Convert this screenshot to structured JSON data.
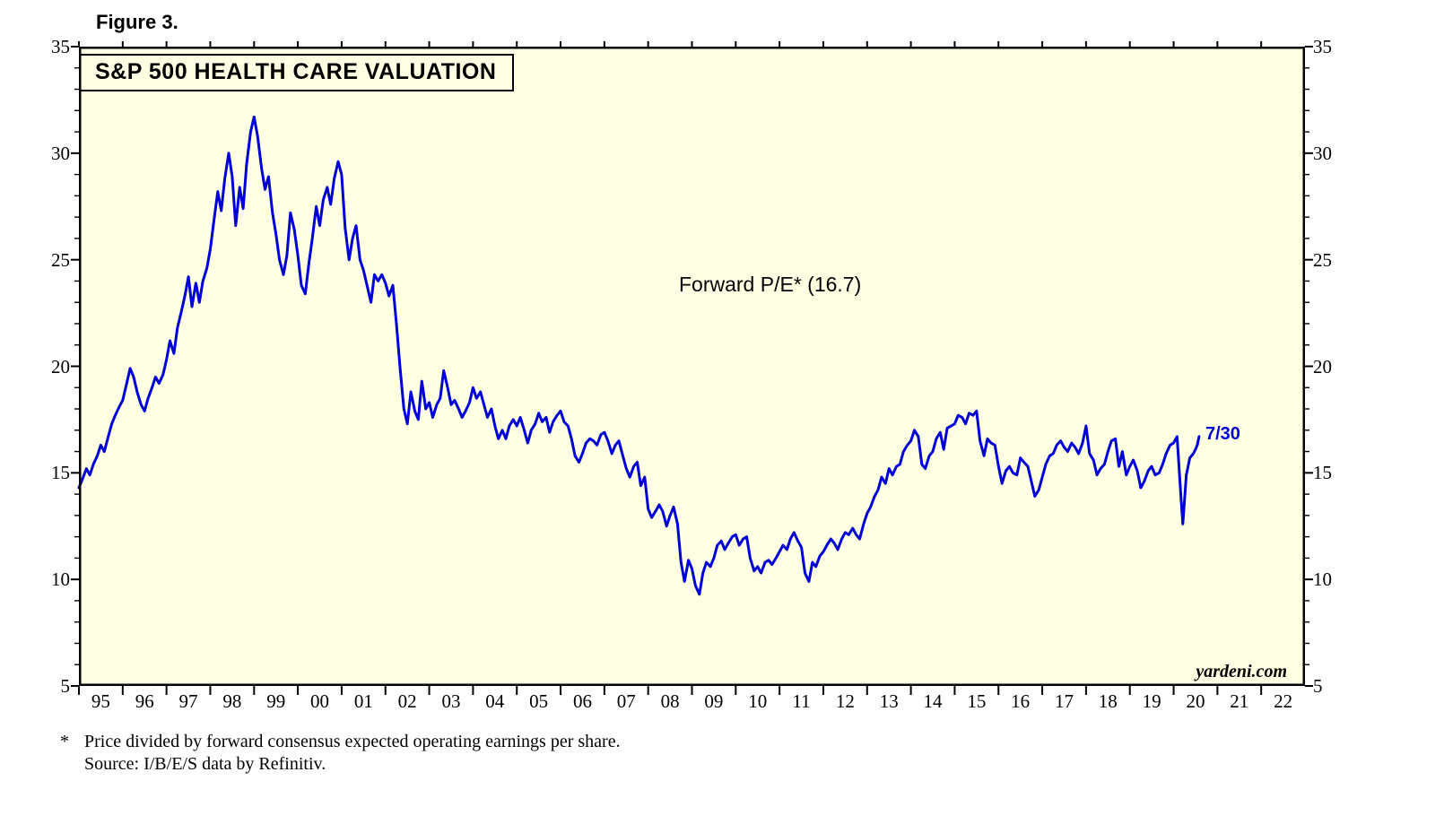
{
  "figure_label": "Figure 3.",
  "chart": {
    "title": "S&P 500 HEALTH CARE VALUATION",
    "annotation": "Forward P/E* (16.7)",
    "last_point_label": "7/30",
    "watermark": "yardeni.com",
    "colors": {
      "line": "#0000D6",
      "plot_bg": "#FFFFE3",
      "axis": "#000000"
    }
  },
  "footnote": {
    "marker": "*",
    "line1": "Price divided by forward consensus expected operating earnings per share.",
    "line2": "Source: I/B/E/S data by Refinitiv."
  },
  "chart_data": {
    "type": "line",
    "title": "S&P 500 HEALTH CARE VALUATION",
    "series_name": "Forward P/E",
    "last_value": 16.7,
    "last_date_label": "7/30",
    "x_range": [
      1995,
      2023
    ],
    "y_range": [
      5,
      35
    ],
    "y_ticks": [
      5,
      10,
      15,
      20,
      25,
      30,
      35
    ],
    "x_tick_labels": [
      "95",
      "96",
      "97",
      "98",
      "99",
      "00",
      "01",
      "02",
      "03",
      "04",
      "05",
      "06",
      "07",
      "08",
      "09",
      "10",
      "11",
      "12",
      "13",
      "14",
      "15",
      "16",
      "17",
      "18",
      "19",
      "20",
      "21",
      "22"
    ],
    "grid": false,
    "legend": "none",
    "points": [
      [
        1995.0,
        14.3
      ],
      [
        1995.08,
        14.7
      ],
      [
        1995.17,
        15.2
      ],
      [
        1995.25,
        14.9
      ],
      [
        1995.33,
        15.4
      ],
      [
        1995.42,
        15.8
      ],
      [
        1995.5,
        16.3
      ],
      [
        1995.58,
        16.0
      ],
      [
        1995.67,
        16.7
      ],
      [
        1995.75,
        17.3
      ],
      [
        1995.83,
        17.7
      ],
      [
        1995.92,
        18.1
      ],
      [
        1996.0,
        18.4
      ],
      [
        1996.08,
        19.1
      ],
      [
        1996.17,
        19.9
      ],
      [
        1996.25,
        19.5
      ],
      [
        1996.33,
        18.8
      ],
      [
        1996.42,
        18.2
      ],
      [
        1996.5,
        17.9
      ],
      [
        1996.58,
        18.5
      ],
      [
        1996.67,
        19.0
      ],
      [
        1996.75,
        19.5
      ],
      [
        1996.83,
        19.2
      ],
      [
        1996.92,
        19.6
      ],
      [
        1997.0,
        20.3
      ],
      [
        1997.08,
        21.2
      ],
      [
        1997.17,
        20.6
      ],
      [
        1997.25,
        21.8
      ],
      [
        1997.33,
        22.5
      ],
      [
        1997.42,
        23.3
      ],
      [
        1997.5,
        24.2
      ],
      [
        1997.58,
        22.8
      ],
      [
        1997.67,
        23.9
      ],
      [
        1997.75,
        23.0
      ],
      [
        1997.83,
        24.0
      ],
      [
        1997.92,
        24.6
      ],
      [
        1998.0,
        25.5
      ],
      [
        1998.08,
        26.8
      ],
      [
        1998.17,
        28.2
      ],
      [
        1998.25,
        27.3
      ],
      [
        1998.33,
        28.8
      ],
      [
        1998.42,
        30.0
      ],
      [
        1998.5,
        28.9
      ],
      [
        1998.58,
        26.6
      ],
      [
        1998.67,
        28.4
      ],
      [
        1998.75,
        27.4
      ],
      [
        1998.83,
        29.5
      ],
      [
        1998.92,
        31.0
      ],
      [
        1999.0,
        31.7
      ],
      [
        1999.08,
        30.8
      ],
      [
        1999.17,
        29.3
      ],
      [
        1999.25,
        28.3
      ],
      [
        1999.33,
        28.9
      ],
      [
        1999.42,
        27.2
      ],
      [
        1999.5,
        26.2
      ],
      [
        1999.58,
        25.0
      ],
      [
        1999.67,
        24.3
      ],
      [
        1999.75,
        25.2
      ],
      [
        1999.83,
        27.2
      ],
      [
        1999.92,
        26.4
      ],
      [
        2000.0,
        25.2
      ],
      [
        2000.08,
        23.8
      ],
      [
        2000.17,
        23.4
      ],
      [
        2000.25,
        24.8
      ],
      [
        2000.33,
        26.0
      ],
      [
        2000.42,
        27.5
      ],
      [
        2000.5,
        26.6
      ],
      [
        2000.58,
        27.8
      ],
      [
        2000.67,
        28.4
      ],
      [
        2000.75,
        27.6
      ],
      [
        2000.83,
        28.8
      ],
      [
        2000.92,
        29.6
      ],
      [
        2001.0,
        29.0
      ],
      [
        2001.08,
        26.5
      ],
      [
        2001.17,
        25.0
      ],
      [
        2001.25,
        26.0
      ],
      [
        2001.33,
        26.6
      ],
      [
        2001.42,
        25.0
      ],
      [
        2001.5,
        24.5
      ],
      [
        2001.58,
        23.8
      ],
      [
        2001.67,
        23.0
      ],
      [
        2001.75,
        24.3
      ],
      [
        2001.83,
        24.0
      ],
      [
        2001.92,
        24.3
      ],
      [
        2002.0,
        23.9
      ],
      [
        2002.08,
        23.3
      ],
      [
        2002.17,
        23.8
      ],
      [
        2002.25,
        22.0
      ],
      [
        2002.33,
        20.0
      ],
      [
        2002.42,
        18.0
      ],
      [
        2002.5,
        17.3
      ],
      [
        2002.58,
        18.8
      ],
      [
        2002.67,
        17.9
      ],
      [
        2002.75,
        17.5
      ],
      [
        2002.83,
        19.3
      ],
      [
        2002.92,
        18.0
      ],
      [
        2003.0,
        18.3
      ],
      [
        2003.08,
        17.6
      ],
      [
        2003.17,
        18.2
      ],
      [
        2003.25,
        18.5
      ],
      [
        2003.33,
        19.8
      ],
      [
        2003.42,
        19.0
      ],
      [
        2003.5,
        18.2
      ],
      [
        2003.58,
        18.4
      ],
      [
        2003.67,
        18.0
      ],
      [
        2003.75,
        17.6
      ],
      [
        2003.83,
        17.9
      ],
      [
        2003.92,
        18.3
      ],
      [
        2004.0,
        19.0
      ],
      [
        2004.08,
        18.5
      ],
      [
        2004.17,
        18.8
      ],
      [
        2004.25,
        18.2
      ],
      [
        2004.33,
        17.6
      ],
      [
        2004.42,
        18.0
      ],
      [
        2004.5,
        17.2
      ],
      [
        2004.58,
        16.6
      ],
      [
        2004.67,
        17.0
      ],
      [
        2004.75,
        16.6
      ],
      [
        2004.83,
        17.2
      ],
      [
        2004.92,
        17.5
      ],
      [
        2005.0,
        17.2
      ],
      [
        2005.08,
        17.6
      ],
      [
        2005.17,
        17.0
      ],
      [
        2005.25,
        16.4
      ],
      [
        2005.33,
        17.0
      ],
      [
        2005.42,
        17.3
      ],
      [
        2005.5,
        17.8
      ],
      [
        2005.58,
        17.4
      ],
      [
        2005.67,
        17.6
      ],
      [
        2005.75,
        16.9
      ],
      [
        2005.83,
        17.4
      ],
      [
        2005.92,
        17.7
      ],
      [
        2006.0,
        17.9
      ],
      [
        2006.08,
        17.4
      ],
      [
        2006.17,
        17.2
      ],
      [
        2006.25,
        16.6
      ],
      [
        2006.33,
        15.8
      ],
      [
        2006.42,
        15.5
      ],
      [
        2006.5,
        15.9
      ],
      [
        2006.58,
        16.4
      ],
      [
        2006.67,
        16.6
      ],
      [
        2006.75,
        16.5
      ],
      [
        2006.83,
        16.3
      ],
      [
        2006.92,
        16.8
      ],
      [
        2007.0,
        16.9
      ],
      [
        2007.08,
        16.5
      ],
      [
        2007.17,
        15.9
      ],
      [
        2007.25,
        16.3
      ],
      [
        2007.33,
        16.5
      ],
      [
        2007.42,
        15.8
      ],
      [
        2007.5,
        15.2
      ],
      [
        2007.58,
        14.8
      ],
      [
        2007.67,
        15.3
      ],
      [
        2007.75,
        15.5
      ],
      [
        2007.83,
        14.4
      ],
      [
        2007.92,
        14.8
      ],
      [
        2008.0,
        13.3
      ],
      [
        2008.08,
        12.9
      ],
      [
        2008.17,
        13.2
      ],
      [
        2008.25,
        13.5
      ],
      [
        2008.33,
        13.2
      ],
      [
        2008.42,
        12.5
      ],
      [
        2008.5,
        13.0
      ],
      [
        2008.58,
        13.4
      ],
      [
        2008.67,
        12.6
      ],
      [
        2008.75,
        10.8
      ],
      [
        2008.83,
        9.9
      ],
      [
        2008.92,
        10.9
      ],
      [
        2009.0,
        10.5
      ],
      [
        2009.08,
        9.7
      ],
      [
        2009.17,
        9.3
      ],
      [
        2009.25,
        10.3
      ],
      [
        2009.33,
        10.8
      ],
      [
        2009.42,
        10.6
      ],
      [
        2009.5,
        11.0
      ],
      [
        2009.58,
        11.6
      ],
      [
        2009.67,
        11.8
      ],
      [
        2009.75,
        11.4
      ],
      [
        2009.83,
        11.7
      ],
      [
        2009.92,
        12.0
      ],
      [
        2010.0,
        12.1
      ],
      [
        2010.08,
        11.6
      ],
      [
        2010.17,
        11.9
      ],
      [
        2010.25,
        12.0
      ],
      [
        2010.33,
        11.0
      ],
      [
        2010.42,
        10.4
      ],
      [
        2010.5,
        10.6
      ],
      [
        2010.58,
        10.3
      ],
      [
        2010.67,
        10.8
      ],
      [
        2010.75,
        10.9
      ],
      [
        2010.83,
        10.7
      ],
      [
        2010.92,
        11.0
      ],
      [
        2011.0,
        11.3
      ],
      [
        2011.08,
        11.6
      ],
      [
        2011.17,
        11.4
      ],
      [
        2011.25,
        11.9
      ],
      [
        2011.33,
        12.2
      ],
      [
        2011.42,
        11.8
      ],
      [
        2011.5,
        11.5
      ],
      [
        2011.58,
        10.3
      ],
      [
        2011.67,
        9.9
      ],
      [
        2011.75,
        10.8
      ],
      [
        2011.83,
        10.6
      ],
      [
        2011.92,
        11.1
      ],
      [
        2012.0,
        11.3
      ],
      [
        2012.08,
        11.6
      ],
      [
        2012.17,
        11.9
      ],
      [
        2012.25,
        11.7
      ],
      [
        2012.33,
        11.4
      ],
      [
        2012.42,
        11.9
      ],
      [
        2012.5,
        12.2
      ],
      [
        2012.58,
        12.1
      ],
      [
        2012.67,
        12.4
      ],
      [
        2012.75,
        12.1
      ],
      [
        2012.83,
        11.9
      ],
      [
        2012.92,
        12.6
      ],
      [
        2013.0,
        13.1
      ],
      [
        2013.08,
        13.4
      ],
      [
        2013.17,
        13.9
      ],
      [
        2013.25,
        14.2
      ],
      [
        2013.33,
        14.8
      ],
      [
        2013.42,
        14.5
      ],
      [
        2013.5,
        15.2
      ],
      [
        2013.58,
        14.9
      ],
      [
        2013.67,
        15.3
      ],
      [
        2013.75,
        15.4
      ],
      [
        2013.83,
        16.0
      ],
      [
        2013.92,
        16.3
      ],
      [
        2014.0,
        16.5
      ],
      [
        2014.08,
        17.0
      ],
      [
        2014.17,
        16.7
      ],
      [
        2014.25,
        15.4
      ],
      [
        2014.33,
        15.2
      ],
      [
        2014.42,
        15.8
      ],
      [
        2014.5,
        16.0
      ],
      [
        2014.58,
        16.6
      ],
      [
        2014.67,
        16.9
      ],
      [
        2014.75,
        16.1
      ],
      [
        2014.83,
        17.1
      ],
      [
        2014.92,
        17.2
      ],
      [
        2015.0,
        17.3
      ],
      [
        2015.08,
        17.7
      ],
      [
        2015.17,
        17.6
      ],
      [
        2015.25,
        17.3
      ],
      [
        2015.33,
        17.8
      ],
      [
        2015.42,
        17.7
      ],
      [
        2015.5,
        17.9
      ],
      [
        2015.58,
        16.5
      ],
      [
        2015.67,
        15.8
      ],
      [
        2015.75,
        16.6
      ],
      [
        2015.83,
        16.4
      ],
      [
        2015.92,
        16.3
      ],
      [
        2016.0,
        15.3
      ],
      [
        2016.08,
        14.5
      ],
      [
        2016.17,
        15.1
      ],
      [
        2016.25,
        15.3
      ],
      [
        2016.33,
        15.0
      ],
      [
        2016.42,
        14.9
      ],
      [
        2016.5,
        15.7
      ],
      [
        2016.58,
        15.5
      ],
      [
        2016.67,
        15.3
      ],
      [
        2016.75,
        14.6
      ],
      [
        2016.83,
        13.9
      ],
      [
        2016.92,
        14.2
      ],
      [
        2017.0,
        14.8
      ],
      [
        2017.08,
        15.4
      ],
      [
        2017.17,
        15.8
      ],
      [
        2017.25,
        15.9
      ],
      [
        2017.33,
        16.3
      ],
      [
        2017.42,
        16.5
      ],
      [
        2017.5,
        16.2
      ],
      [
        2017.58,
        16.0
      ],
      [
        2017.67,
        16.4
      ],
      [
        2017.75,
        16.2
      ],
      [
        2017.83,
        15.9
      ],
      [
        2017.92,
        16.4
      ],
      [
        2018.0,
        17.2
      ],
      [
        2018.08,
        15.9
      ],
      [
        2018.17,
        15.6
      ],
      [
        2018.25,
        14.9
      ],
      [
        2018.33,
        15.2
      ],
      [
        2018.42,
        15.4
      ],
      [
        2018.5,
        16.0
      ],
      [
        2018.58,
        16.5
      ],
      [
        2018.67,
        16.6
      ],
      [
        2018.75,
        15.3
      ],
      [
        2018.83,
        16.0
      ],
      [
        2018.92,
        14.9
      ],
      [
        2019.0,
        15.3
      ],
      [
        2019.08,
        15.6
      ],
      [
        2019.17,
        15.1
      ],
      [
        2019.25,
        14.3
      ],
      [
        2019.33,
        14.6
      ],
      [
        2019.42,
        15.1
      ],
      [
        2019.5,
        15.3
      ],
      [
        2019.58,
        14.9
      ],
      [
        2019.67,
        15.0
      ],
      [
        2019.75,
        15.4
      ],
      [
        2019.83,
        15.9
      ],
      [
        2019.92,
        16.3
      ],
      [
        2020.0,
        16.4
      ],
      [
        2020.08,
        16.7
      ],
      [
        2020.17,
        13.8
      ],
      [
        2020.21,
        12.6
      ],
      [
        2020.29,
        14.9
      ],
      [
        2020.37,
        15.7
      ],
      [
        2020.45,
        15.9
      ],
      [
        2020.5,
        16.1
      ],
      [
        2020.54,
        16.3
      ],
      [
        2020.58,
        16.7
      ]
    ]
  }
}
